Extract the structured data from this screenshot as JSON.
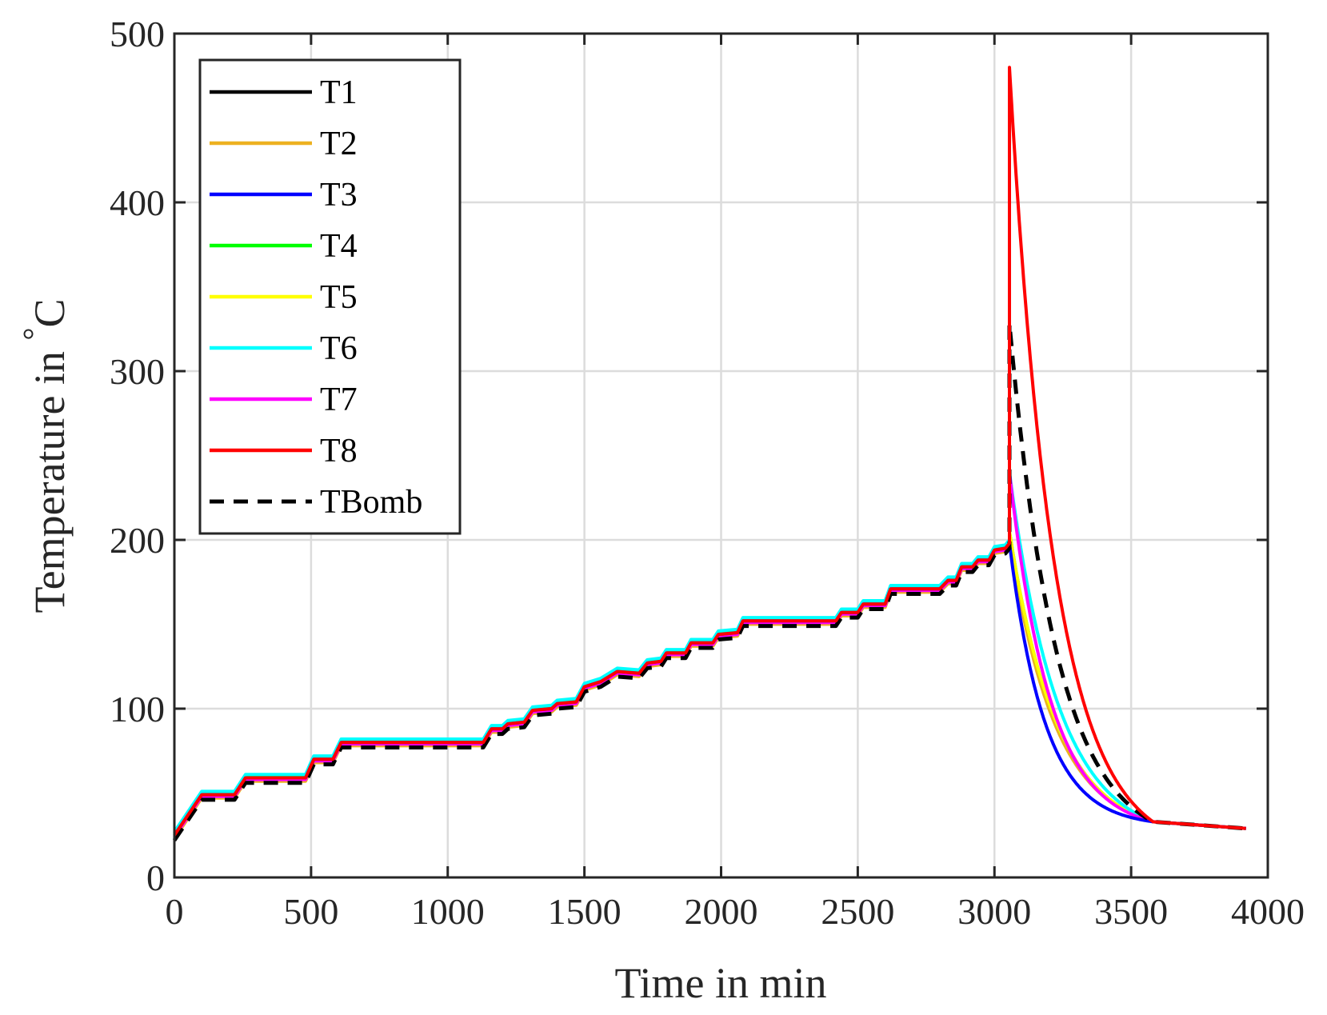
{
  "chart_data": {
    "type": "line",
    "title": "",
    "xlabel": "Time in min",
    "ylabel": "Temperature in ",
    "ylabel_unit": "C",
    "ylabel_superscript": "°",
    "xlim": [
      0,
      4000
    ],
    "ylim": [
      0,
      500
    ],
    "xticks": [
      0,
      500,
      1000,
      1500,
      2000,
      2500,
      3000,
      3500,
      4000
    ],
    "yticks": [
      0,
      100,
      200,
      300,
      400,
      500
    ],
    "grid": true,
    "legend_position": "top-left",
    "base_profile": [
      [
        0,
        25
      ],
      [
        100,
        49
      ],
      [
        220,
        49
      ],
      [
        260,
        59
      ],
      [
        480,
        59
      ],
      [
        510,
        70
      ],
      [
        580,
        70
      ],
      [
        610,
        80
      ],
      [
        1130,
        80
      ],
      [
        1160,
        88
      ],
      [
        1200,
        88
      ],
      [
        1220,
        91
      ],
      [
        1280,
        92
      ],
      [
        1310,
        99
      ],
      [
        1380,
        100
      ],
      [
        1400,
        103
      ],
      [
        1470,
        104
      ],
      [
        1500,
        113
      ],
      [
        1560,
        116
      ],
      [
        1620,
        122
      ],
      [
        1700,
        121
      ],
      [
        1730,
        127
      ],
      [
        1780,
        128
      ],
      [
        1800,
        133
      ],
      [
        1870,
        133
      ],
      [
        1890,
        139
      ],
      [
        1970,
        139
      ],
      [
        1990,
        144
      ],
      [
        2060,
        145
      ],
      [
        2080,
        152
      ],
      [
        2420,
        152
      ],
      [
        2440,
        157
      ],
      [
        2500,
        157
      ],
      [
        2520,
        162
      ],
      [
        2600,
        162
      ],
      [
        2620,
        171
      ],
      [
        2800,
        171
      ],
      [
        2830,
        176
      ],
      [
        2860,
        176
      ],
      [
        2880,
        184
      ],
      [
        2920,
        184
      ],
      [
        2940,
        188
      ],
      [
        2980,
        188
      ],
      [
        3000,
        194
      ],
      [
        3040,
        195
      ],
      [
        3055,
        198
      ]
    ],
    "series": [
      {
        "name": "T1",
        "color": "#000000",
        "dash": "",
        "offset": 1,
        "peak": 200,
        "tau": 175
      },
      {
        "name": "T2",
        "color": "#EDB120",
        "dash": "",
        "offset": -2,
        "peak": 200,
        "tau": 170
      },
      {
        "name": "T3",
        "color": "#0000FF",
        "dash": "",
        "offset": 0,
        "peak": 198,
        "tau": 130
      },
      {
        "name": "T4",
        "color": "#00FF00",
        "dash": "",
        "offset": 1,
        "peak": 205,
        "tau": 175
      },
      {
        "name": "T5",
        "color": "#FFFF00",
        "dash": "",
        "offset": 0,
        "peak": 205,
        "tau": 175
      },
      {
        "name": "T6",
        "color": "#00FFFF",
        "dash": "",
        "offset": 2,
        "peak": 240,
        "tau": 180
      },
      {
        "name": "T7",
        "color": "#FF00FF",
        "dash": "",
        "offset": -1,
        "peak": 240,
        "tau": 150
      },
      {
        "name": "T8",
        "color": "#FF0000",
        "dash": "",
        "offset": 0,
        "peak": 480,
        "tau": 165
      },
      {
        "name": "TBomb",
        "color": "#000000",
        "dash": "18,12",
        "offset": -3,
        "peak": 328,
        "tau": 175
      }
    ],
    "cooling": {
      "start_time": 3055,
      "base_temp": 25,
      "end_time": 3580,
      "end_temp": 33,
      "tail": [
        [
          3580,
          33
        ],
        [
          3920,
          29
        ]
      ]
    }
  }
}
